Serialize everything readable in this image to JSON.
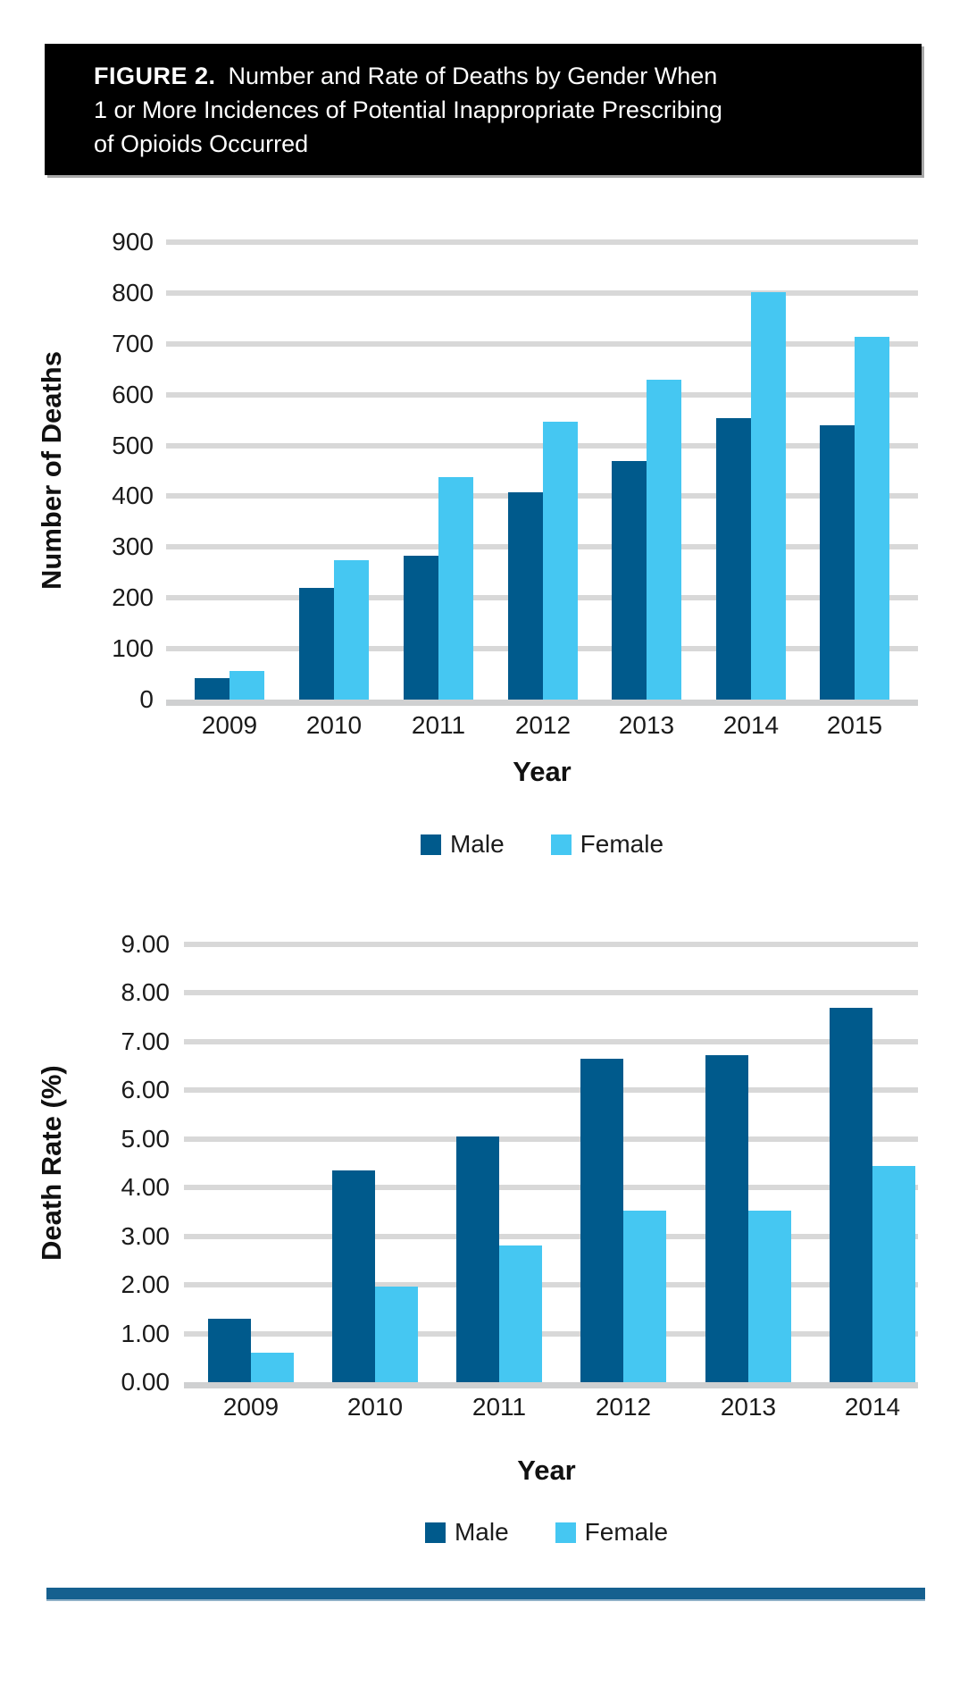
{
  "figure": {
    "label": "FIGURE 2.",
    "title_line1_rest": "Number and Rate of Deaths by Gender When",
    "title_line2": "1 or More Incidences of Potential Inappropriate Prescribing",
    "title_line3": "of Opioids Occurred"
  },
  "colors": {
    "male": "#005a8c",
    "female": "#45c7f2",
    "gridline": "#d8d8d8",
    "baseline": "#cfd0d1",
    "header_bg": "#000000",
    "header_text": "#ffffff",
    "bottom_rule": "#15608f"
  },
  "chart_data": [
    {
      "type": "bar",
      "title": "Number of Deaths by Gender and Year",
      "categories": [
        "2009",
        "2010",
        "2011",
        "2012",
        "2013",
        "2014",
        "2015"
      ],
      "series": [
        {
          "name": "Male",
          "color_key": "male",
          "values": [
            43,
            220,
            283,
            408,
            470,
            553,
            540
          ]
        },
        {
          "name": "Female",
          "color_key": "female",
          "values": [
            57,
            274,
            437,
            546,
            630,
            802,
            714
          ]
        }
      ],
      "xlabel": "Year",
      "ylabel": "Number of Deaths",
      "ylim": [
        0,
        900
      ],
      "ytick_step": 100,
      "ytick_format": "int",
      "grid": true,
      "legend_position": "bottom",
      "legend": [
        "Male",
        "Female"
      ]
    },
    {
      "type": "bar",
      "title": "Death Rate (%) by Gender and Year",
      "categories": [
        "2009",
        "2010",
        "2011",
        "2012",
        "2013",
        "2014"
      ],
      "series": [
        {
          "name": "Male",
          "color_key": "male",
          "values": [
            1.3,
            4.35,
            5.05,
            6.65,
            6.72,
            7.7
          ]
        },
        {
          "name": "Female",
          "color_key": "female",
          "values": [
            0.6,
            1.97,
            2.82,
            3.53,
            3.52,
            4.45
          ]
        }
      ],
      "xlabel": "Year",
      "ylabel": "Death Rate (%)",
      "ylim": [
        0,
        9
      ],
      "ytick_step": 1,
      "ytick_format": "2dp",
      "grid": true,
      "legend_position": "bottom",
      "legend": [
        "Male",
        "Female"
      ]
    }
  ]
}
